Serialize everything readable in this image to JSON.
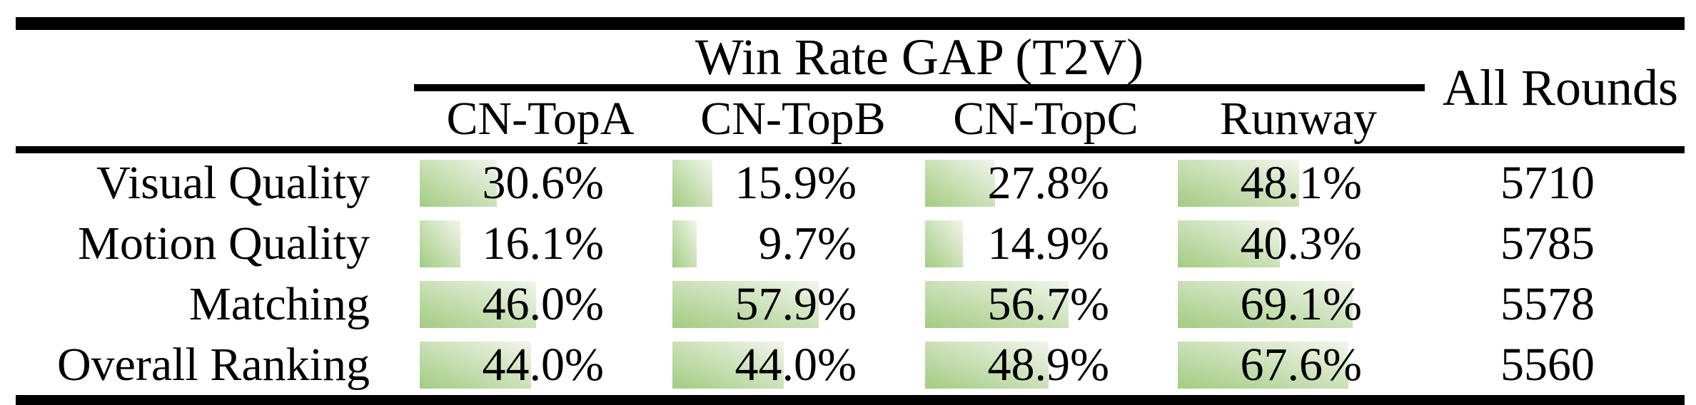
{
  "table": {
    "title": "Win Rate GAP (T2V)",
    "all_rounds_header": "All Rounds",
    "columns": [
      "CN-TopA",
      "CN-TopB",
      "CN-TopC",
      "Runway"
    ],
    "rows": [
      {
        "label": "Visual Quality",
        "values": [
          30.6,
          15.9,
          27.8,
          48.1
        ],
        "all_rounds": "5710"
      },
      {
        "label": "Motion Quality",
        "values": [
          16.1,
          9.7,
          14.9,
          40.3
        ],
        "all_rounds": "5785"
      },
      {
        "label": "Matching",
        "values": [
          46.0,
          57.9,
          56.7,
          69.1
        ],
        "all_rounds": "5578"
      },
      {
        "label": "Overall Ranking",
        "values": [
          44.0,
          44.0,
          48.9,
          67.6
        ],
        "all_rounds": "5560"
      }
    ],
    "bar_colors": {
      "start": "#a3cc82",
      "end": "#f2f5ec"
    },
    "rule_color": "#000000"
  }
}
